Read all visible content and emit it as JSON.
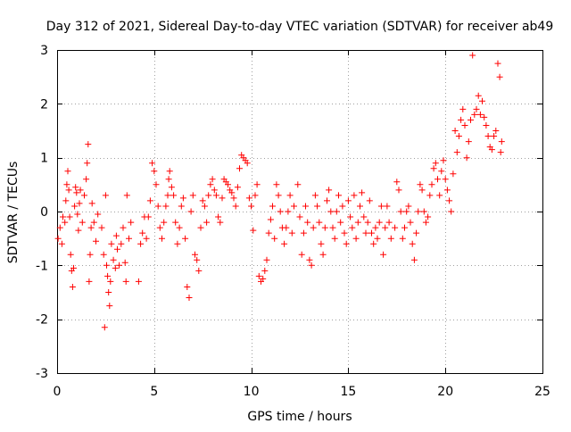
{
  "chart_data": {
    "type": "scatter",
    "title": "Day 312 of 2021, Sidereal Day-to-day VTEC variation (SDTVAR) for receiver ab49",
    "xlabel": "GPS time / hours",
    "ylabel": "SDTVAR / TECUs",
    "xlim": [
      0,
      25
    ],
    "ylim": [
      -3,
      3
    ],
    "x_ticks": [
      "0",
      "5",
      "10",
      "15",
      "20",
      "25"
    ],
    "y_ticks": [
      "-3",
      "-2",
      "-1",
      "0",
      "1",
      "2",
      "3"
    ],
    "grid": true,
    "legend": "none",
    "marker": "+",
    "color": "#ff0000",
    "series": [
      {
        "name": "SDTVAR",
        "points": [
          [
            0.05,
            -0.5
          ],
          [
            0.15,
            -0.3
          ],
          [
            0.25,
            -0.6
          ],
          [
            0.3,
            -0.1
          ],
          [
            0.4,
            -0.2
          ],
          [
            0.45,
            0.2
          ],
          [
            0.5,
            0.5
          ],
          [
            0.55,
            0.75
          ],
          [
            0.6,
            0.4
          ],
          [
            0.65,
            -0.1
          ],
          [
            0.7,
            -0.8
          ],
          [
            0.75,
            -1.1
          ],
          [
            0.8,
            -1.4
          ],
          [
            0.85,
            -1.05
          ],
          [
            0.9,
            0.1
          ],
          [
            0.95,
            0.45
          ],
          [
            1.0,
            0.35
          ],
          [
            1.05,
            -0.05
          ],
          [
            1.1,
            -0.35
          ],
          [
            1.15,
            0.15
          ],
          [
            1.2,
            0.4
          ],
          [
            1.3,
            -0.2
          ],
          [
            1.4,
            0.3
          ],
          [
            1.5,
            0.6
          ],
          [
            1.55,
            0.9
          ],
          [
            1.6,
            1.25
          ],
          [
            1.65,
            -1.3
          ],
          [
            1.7,
            -0.8
          ],
          [
            1.75,
            -0.3
          ],
          [
            1.8,
            0.15
          ],
          [
            1.9,
            -0.2
          ],
          [
            2.0,
            -0.55
          ],
          [
            2.1,
            -0.05
          ],
          [
            2.3,
            -0.3
          ],
          [
            2.4,
            -0.8
          ],
          [
            2.45,
            -2.15
          ],
          [
            2.5,
            0.3
          ],
          [
            2.55,
            -1.0
          ],
          [
            2.6,
            -1.2
          ],
          [
            2.65,
            -1.5
          ],
          [
            2.7,
            -1.75
          ],
          [
            2.75,
            -1.3
          ],
          [
            2.8,
            -0.6
          ],
          [
            2.9,
            -0.9
          ],
          [
            3.0,
            -1.05
          ],
          [
            3.05,
            -0.45
          ],
          [
            3.1,
            -0.7
          ],
          [
            3.2,
            -1.0
          ],
          [
            3.3,
            -0.6
          ],
          [
            3.4,
            -0.3
          ],
          [
            3.5,
            -0.95
          ],
          [
            3.55,
            -1.3
          ],
          [
            3.6,
            0.3
          ],
          [
            3.7,
            -0.5
          ],
          [
            3.8,
            -0.2
          ],
          [
            4.2,
            -1.3
          ],
          [
            4.3,
            -0.6
          ],
          [
            4.4,
            -0.4
          ],
          [
            4.5,
            -0.1
          ],
          [
            4.6,
            -0.5
          ],
          [
            4.7,
            -0.1
          ],
          [
            4.8,
            0.2
          ],
          [
            4.9,
            0.9
          ],
          [
            5.0,
            0.75
          ],
          [
            5.1,
            0.5
          ],
          [
            5.2,
            0.1
          ],
          [
            5.3,
            -0.3
          ],
          [
            5.4,
            -0.5
          ],
          [
            5.5,
            -0.2
          ],
          [
            5.6,
            0.1
          ],
          [
            5.7,
            0.3
          ],
          [
            5.75,
            0.6
          ],
          [
            5.8,
            0.75
          ],
          [
            5.9,
            0.45
          ],
          [
            6.0,
            0.3
          ],
          [
            6.1,
            -0.2
          ],
          [
            6.2,
            -0.6
          ],
          [
            6.3,
            -0.3
          ],
          [
            6.4,
            0.1
          ],
          [
            6.5,
            0.25
          ],
          [
            6.6,
            -0.5
          ],
          [
            6.7,
            -1.4
          ],
          [
            6.8,
            -1.6
          ],
          [
            6.9,
            0.0
          ],
          [
            7.0,
            0.3
          ],
          [
            7.1,
            -0.8
          ],
          [
            7.2,
            -0.9
          ],
          [
            7.3,
            -1.1
          ],
          [
            7.4,
            -0.3
          ],
          [
            7.5,
            0.2
          ],
          [
            7.6,
            0.1
          ],
          [
            7.7,
            -0.2
          ],
          [
            7.8,
            0.3
          ],
          [
            7.9,
            0.5
          ],
          [
            8.0,
            0.6
          ],
          [
            8.1,
            0.4
          ],
          [
            8.2,
            0.3
          ],
          [
            8.3,
            -0.1
          ],
          [
            8.4,
            -0.2
          ],
          [
            8.5,
            0.25
          ],
          [
            8.6,
            0.6
          ],
          [
            8.7,
            0.55
          ],
          [
            8.8,
            0.5
          ],
          [
            8.9,
            0.4
          ],
          [
            9.0,
            0.35
          ],
          [
            9.1,
            0.25
          ],
          [
            9.2,
            0.1
          ],
          [
            9.3,
            0.45
          ],
          [
            9.4,
            0.8
          ],
          [
            9.5,
            1.05
          ],
          [
            9.6,
            1.0
          ],
          [
            9.7,
            0.95
          ],
          [
            9.8,
            0.9
          ],
          [
            9.9,
            0.25
          ],
          [
            10.0,
            0.1
          ],
          [
            10.1,
            -0.35
          ],
          [
            10.2,
            0.3
          ],
          [
            10.3,
            0.5
          ],
          [
            10.4,
            -1.2
          ],
          [
            10.5,
            -1.3
          ],
          [
            10.6,
            -1.25
          ],
          [
            10.7,
            -1.1
          ],
          [
            10.8,
            -0.9
          ],
          [
            10.9,
            -0.4
          ],
          [
            11.0,
            -0.15
          ],
          [
            11.1,
            0.1
          ],
          [
            11.2,
            -0.5
          ],
          [
            11.3,
            0.5
          ],
          [
            11.4,
            0.3
          ],
          [
            11.5,
            0.0
          ],
          [
            11.6,
            -0.3
          ],
          [
            11.7,
            -0.6
          ],
          [
            11.8,
            -0.3
          ],
          [
            11.9,
            0.0
          ],
          [
            12.0,
            0.3
          ],
          [
            12.1,
            -0.4
          ],
          [
            12.2,
            0.1
          ],
          [
            12.4,
            0.5
          ],
          [
            12.5,
            -0.1
          ],
          [
            12.6,
            -0.8
          ],
          [
            12.7,
            -0.4
          ],
          [
            12.8,
            0.1
          ],
          [
            12.9,
            -0.2
          ],
          [
            13.0,
            -0.9
          ],
          [
            13.1,
            -1.0
          ],
          [
            13.2,
            -0.3
          ],
          [
            13.3,
            0.3
          ],
          [
            13.4,
            0.1
          ],
          [
            13.5,
            -0.2
          ],
          [
            13.6,
            -0.6
          ],
          [
            13.7,
            -0.8
          ],
          [
            13.8,
            -0.3
          ],
          [
            13.9,
            0.2
          ],
          [
            14.0,
            0.4
          ],
          [
            14.1,
            0.0
          ],
          [
            14.2,
            -0.3
          ],
          [
            14.3,
            -0.5
          ],
          [
            14.4,
            0.0
          ],
          [
            14.5,
            0.3
          ],
          [
            14.6,
            -0.2
          ],
          [
            14.7,
            0.1
          ],
          [
            14.8,
            -0.4
          ],
          [
            14.9,
            -0.6
          ],
          [
            15.0,
            0.2
          ],
          [
            15.1,
            -0.1
          ],
          [
            15.2,
            -0.3
          ],
          [
            15.3,
            0.3
          ],
          [
            15.4,
            -0.5
          ],
          [
            15.5,
            -0.2
          ],
          [
            15.6,
            0.1
          ],
          [
            15.7,
            0.35
          ],
          [
            15.8,
            -0.1
          ],
          [
            15.9,
            -0.4
          ],
          [
            16.0,
            -0.2
          ],
          [
            16.1,
            0.2
          ],
          [
            16.2,
            -0.4
          ],
          [
            16.3,
            -0.6
          ],
          [
            16.4,
            -0.3
          ],
          [
            16.5,
            -0.5
          ],
          [
            16.6,
            -0.2
          ],
          [
            16.7,
            0.1
          ],
          [
            16.8,
            -0.8
          ],
          [
            16.9,
            -0.3
          ],
          [
            17.0,
            0.1
          ],
          [
            17.1,
            -0.2
          ],
          [
            17.2,
            -0.5
          ],
          [
            17.4,
            -0.3
          ],
          [
            17.5,
            0.55
          ],
          [
            17.6,
            0.4
          ],
          [
            17.7,
            0.0
          ],
          [
            17.8,
            -0.5
          ],
          [
            17.9,
            -0.3
          ],
          [
            18.0,
            0.0
          ],
          [
            18.1,
            0.1
          ],
          [
            18.2,
            -0.2
          ],
          [
            18.3,
            -0.6
          ],
          [
            18.4,
            -0.9
          ],
          [
            18.5,
            -0.4
          ],
          [
            18.6,
            0.0
          ],
          [
            18.7,
            0.5
          ],
          [
            18.8,
            0.4
          ],
          [
            18.9,
            0.0
          ],
          [
            19.0,
            -0.2
          ],
          [
            19.1,
            -0.1
          ],
          [
            19.2,
            0.3
          ],
          [
            19.3,
            0.5
          ],
          [
            19.4,
            0.8
          ],
          [
            19.5,
            0.9
          ],
          [
            19.6,
            0.6
          ],
          [
            19.7,
            0.3
          ],
          [
            19.8,
            0.75
          ],
          [
            19.9,
            0.95
          ],
          [
            20.0,
            0.6
          ],
          [
            20.1,
            0.4
          ],
          [
            20.2,
            0.2
          ],
          [
            20.3,
            0.0
          ],
          [
            20.4,
            0.7
          ],
          [
            20.5,
            1.5
          ],
          [
            20.6,
            1.1
          ],
          [
            20.7,
            1.4
          ],
          [
            20.8,
            1.7
          ],
          [
            20.9,
            1.9
          ],
          [
            21.0,
            1.6
          ],
          [
            21.1,
            1.0
          ],
          [
            21.2,
            1.3
          ],
          [
            21.3,
            1.7
          ],
          [
            21.4,
            2.9
          ],
          [
            21.5,
            1.8
          ],
          [
            21.6,
            1.9
          ],
          [
            21.7,
            2.15
          ],
          [
            21.8,
            1.8
          ],
          [
            21.9,
            2.05
          ],
          [
            22.0,
            1.75
          ],
          [
            22.1,
            1.6
          ],
          [
            22.2,
            1.4
          ],
          [
            22.3,
            1.2
          ],
          [
            22.4,
            1.15
          ],
          [
            22.5,
            1.4
          ],
          [
            22.6,
            1.5
          ],
          [
            22.7,
            2.75
          ],
          [
            22.8,
            2.5
          ],
          [
            22.85,
            1.1
          ],
          [
            22.9,
            1.3
          ]
        ]
      }
    ]
  }
}
